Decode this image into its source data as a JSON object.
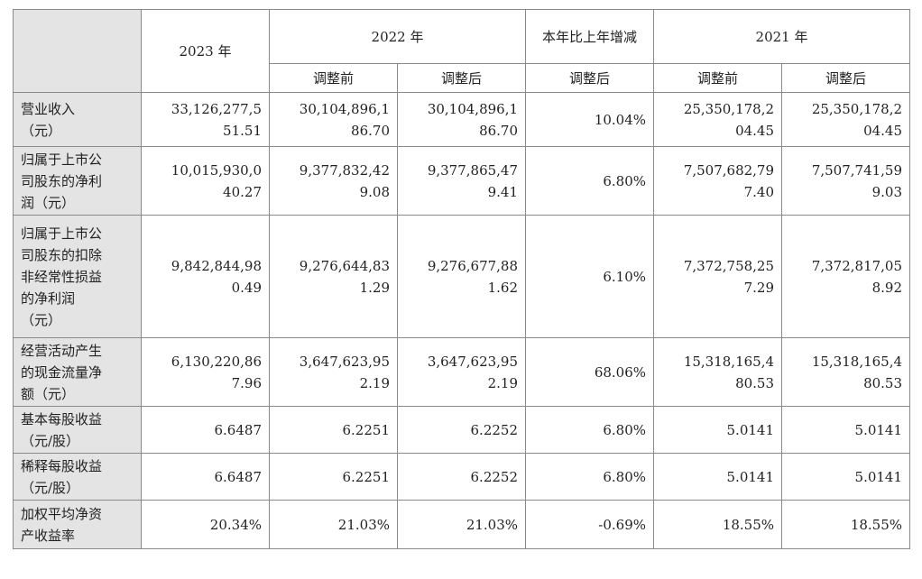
{
  "headers": {
    "y2023": "2023 年",
    "y2022": "2022 年",
    "yoy": "本年比上年增减",
    "y2021": "2021 年",
    "before": "调整前",
    "after": "调整后"
  },
  "rows": [
    {
      "label": [
        "营业收入",
        "（元）"
      ],
      "v2023": [
        "33,126,277,5",
        "51.51"
      ],
      "v2022_before": [
        "30,104,896,1",
        "86.70"
      ],
      "v2022_after": [
        "30,104,896,1",
        "86.70"
      ],
      "yoy": "10.04%",
      "v2021_before": [
        "25,350,178,2",
        "04.45"
      ],
      "v2021_after": [
        "25,350,178,2",
        "04.45"
      ]
    },
    {
      "label": [
        "归属于上市公",
        "司股东的净利",
        "润（元）"
      ],
      "v2023": [
        "10,015,930,0",
        "40.27"
      ],
      "v2022_before": [
        "9,377,832,42",
        "9.08"
      ],
      "v2022_after": [
        "9,377,865,47",
        "9.41"
      ],
      "yoy": "6.80%",
      "v2021_before": [
        "7,507,682,79",
        "7.40"
      ],
      "v2021_after": [
        "7,507,741,59",
        "9.03"
      ]
    },
    {
      "label": [
        "归属于上市公",
        "司股东的扣除",
        "非经常性损益",
        "的净利润",
        "（元）"
      ],
      "v2023": [
        "9,842,844,98",
        "0.49"
      ],
      "v2022_before": [
        "9,276,644,83",
        "1.29"
      ],
      "v2022_after": [
        "9,276,677,88",
        "1.62"
      ],
      "yoy": "6.10%",
      "v2021_before": [
        "7,372,758,25",
        "7.29"
      ],
      "v2021_after": [
        "7,372,817,05",
        "8.92"
      ]
    },
    {
      "label": [
        "经营活动产生",
        "的现金流量净",
        "额（元）"
      ],
      "v2023": [
        "6,130,220,86",
        "7.96"
      ],
      "v2022_before": [
        "3,647,623,95",
        "2.19"
      ],
      "v2022_after": [
        "3,647,623,95",
        "2.19"
      ],
      "yoy": "68.06%",
      "v2021_before": [
        "15,318,165,4",
        "80.53"
      ],
      "v2021_after": [
        "15,318,165,4",
        "80.53"
      ]
    },
    {
      "label": [
        "基本每股收益",
        "（元/股）"
      ],
      "v2023": [
        "6.6487"
      ],
      "v2022_before": [
        "6.2251"
      ],
      "v2022_after": [
        "6.2252"
      ],
      "yoy": "6.80%",
      "v2021_before": [
        "5.0141"
      ],
      "v2021_after": [
        "5.0141"
      ]
    },
    {
      "label": [
        "稀释每股收益",
        "（元/股）"
      ],
      "v2023": [
        "6.6487"
      ],
      "v2022_before": [
        "6.2251"
      ],
      "v2022_after": [
        "6.2252"
      ],
      "yoy": "6.80%",
      "v2021_before": [
        "5.0141"
      ],
      "v2021_after": [
        "5.0141"
      ]
    },
    {
      "label": [
        "加权平均净资",
        "产收益率"
      ],
      "v2023": [
        "20.34%"
      ],
      "v2022_before": [
        "21.03%"
      ],
      "v2022_after": [
        "21.03%"
      ],
      "yoy": "-0.69%",
      "v2021_before": [
        "18.55%"
      ],
      "v2021_after": [
        "18.55%"
      ]
    }
  ]
}
